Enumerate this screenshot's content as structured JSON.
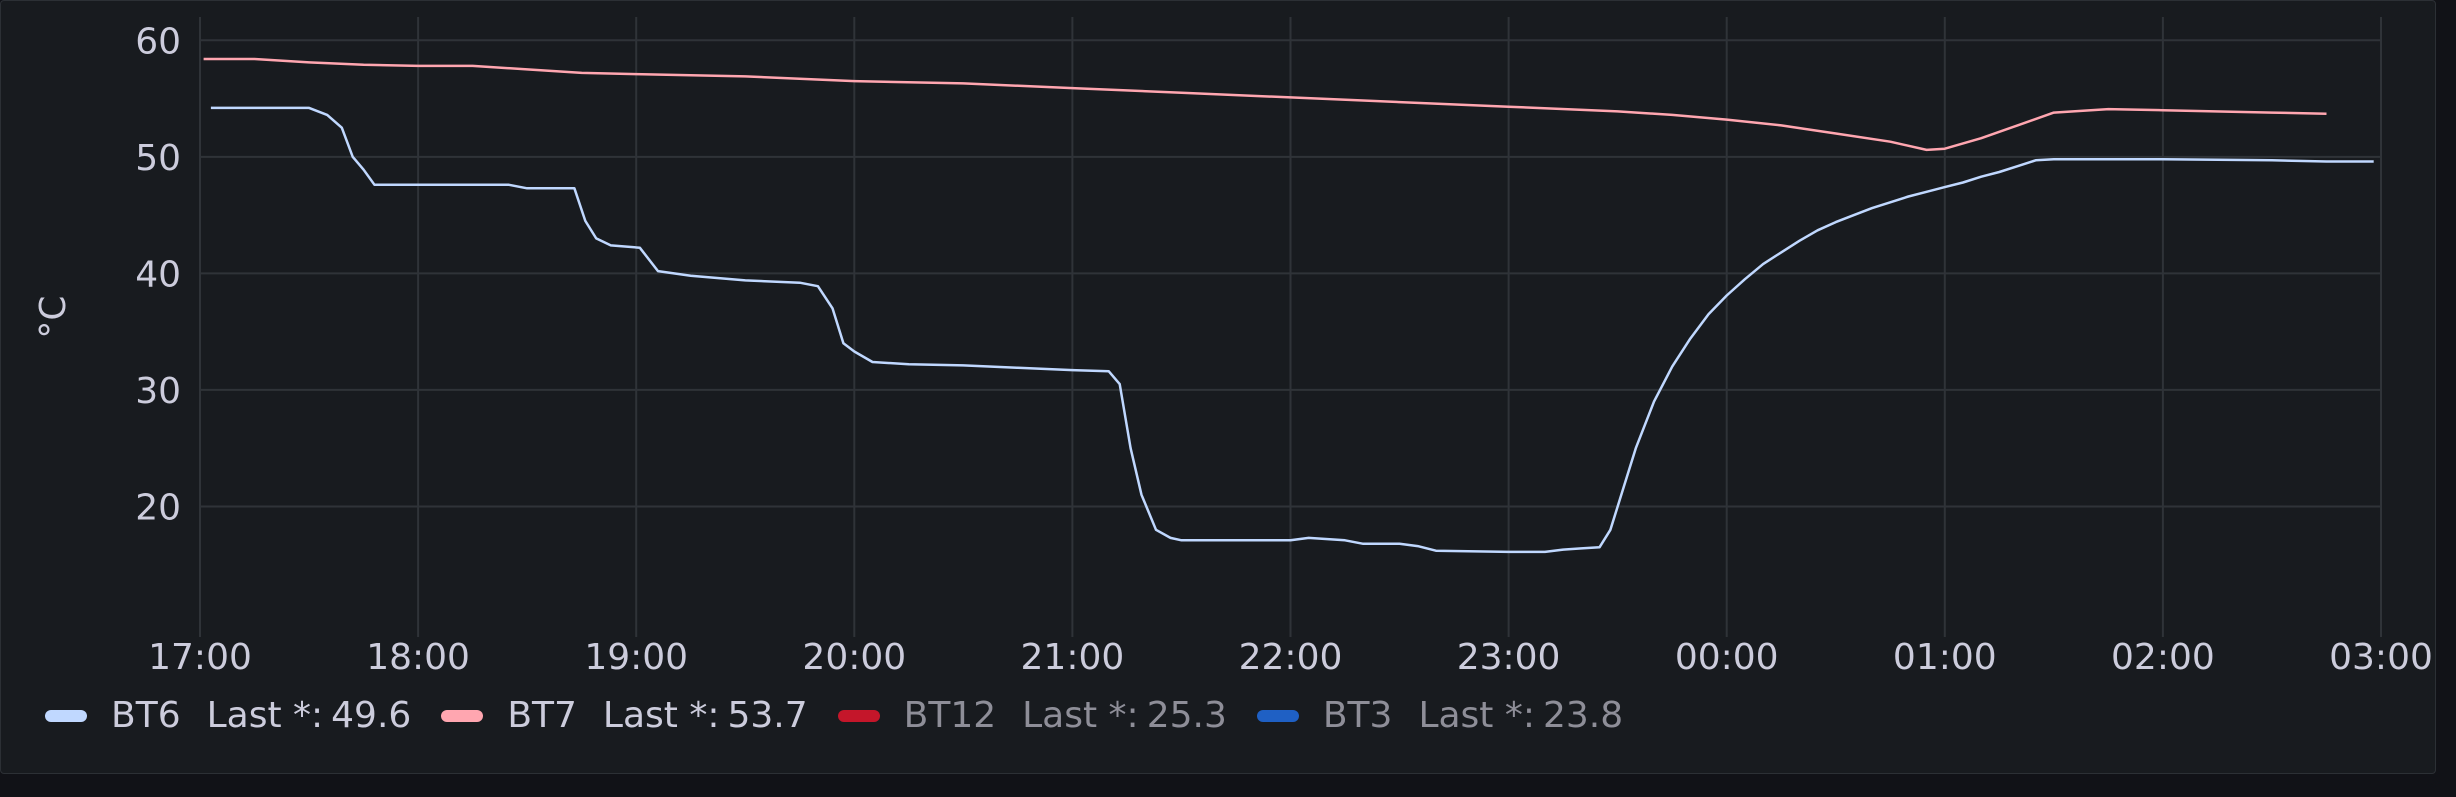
{
  "chart_data": {
    "type": "line",
    "ylabel": "°C",
    "ylim": [
      10,
      62
    ],
    "yticks": [
      20,
      30,
      40,
      50,
      60
    ],
    "xlim_hours": [
      17,
      27
    ],
    "xticks": [
      "17:00",
      "18:00",
      "19:00",
      "20:00",
      "21:00",
      "22:00",
      "23:00",
      "00:00",
      "01:00",
      "02:00",
      "03:00"
    ],
    "grid": true,
    "legend_position": "bottom-left",
    "series": [
      {
        "name": "BT6",
        "color": "#c0d8ff",
        "hidden": false,
        "stat_label": "Last *:",
        "last": "49.6",
        "points": [
          [
            "17:03",
            54.2
          ],
          [
            "17:30",
            54.2
          ],
          [
            "17:35",
            53.6
          ],
          [
            "17:39",
            52.5
          ],
          [
            "17:42",
            50.0
          ],
          [
            "17:45",
            48.9
          ],
          [
            "17:48",
            47.6
          ],
          [
            "18:00",
            47.6
          ],
          [
            "18:25",
            47.6
          ],
          [
            "18:30",
            47.3
          ],
          [
            "18:43",
            47.3
          ],
          [
            "18:46",
            44.5
          ],
          [
            "18:49",
            43.0
          ],
          [
            "18:53",
            42.4
          ],
          [
            "19:01",
            42.2
          ],
          [
            "19:06",
            40.2
          ],
          [
            "19:15",
            39.8
          ],
          [
            "19:30",
            39.4
          ],
          [
            "19:45",
            39.2
          ],
          [
            "19:50",
            38.9
          ],
          [
            "19:54",
            37.0
          ],
          [
            "19:57",
            34.0
          ],
          [
            "20:00",
            33.3
          ],
          [
            "20:05",
            32.4
          ],
          [
            "20:15",
            32.2
          ],
          [
            "20:30",
            32.1
          ],
          [
            "20:45",
            31.9
          ],
          [
            "21:00",
            31.7
          ],
          [
            "21:10",
            31.6
          ],
          [
            "21:13",
            30.5
          ],
          [
            "21:16",
            25.0
          ],
          [
            "21:19",
            21.0
          ],
          [
            "21:23",
            18.0
          ],
          [
            "21:27",
            17.3
          ],
          [
            "21:30",
            17.1
          ],
          [
            "22:00",
            17.1
          ],
          [
            "22:05",
            17.3
          ],
          [
            "22:15",
            17.1
          ],
          [
            "22:20",
            16.8
          ],
          [
            "22:30",
            16.8
          ],
          [
            "22:35",
            16.6
          ],
          [
            "22:40",
            16.2
          ],
          [
            "23:00",
            16.1
          ],
          [
            "23:10",
            16.1
          ],
          [
            "23:15",
            16.3
          ],
          [
            "23:20",
            16.4
          ],
          [
            "23:25",
            16.5
          ],
          [
            "23:28",
            18.0
          ],
          [
            "23:31",
            21.0
          ],
          [
            "23:35",
            25.0
          ],
          [
            "23:40",
            29.0
          ],
          [
            "23:45",
            32.0
          ],
          [
            "23:50",
            34.4
          ],
          [
            "23:55",
            36.5
          ],
          [
            "24:00",
            38.1
          ],
          [
            "24:05",
            39.5
          ],
          [
            "24:10",
            40.8
          ],
          [
            "24:15",
            41.8
          ],
          [
            "24:20",
            42.8
          ],
          [
            "24:25",
            43.7
          ],
          [
            "24:30",
            44.4
          ],
          [
            "24:35",
            45.0
          ],
          [
            "24:40",
            45.6
          ],
          [
            "24:45",
            46.1
          ],
          [
            "24:50",
            46.6
          ],
          [
            "24:55",
            47.0
          ],
          [
            "25:00",
            47.4
          ],
          [
            "25:05",
            47.8
          ],
          [
            "25:10",
            48.3
          ],
          [
            "25:15",
            48.7
          ],
          [
            "25:20",
            49.2
          ],
          [
            "25:25",
            49.7
          ],
          [
            "25:30",
            49.8
          ],
          [
            "26:00",
            49.8
          ],
          [
            "26:30",
            49.7
          ],
          [
            "26:45",
            49.6
          ],
          [
            "26:58",
            49.6
          ]
        ]
      },
      {
        "name": "BT7",
        "color": "#ffa6b0",
        "hidden": false,
        "stat_label": "Last *:",
        "last": "53.7",
        "points": [
          [
            "17:01",
            58.4
          ],
          [
            "17:15",
            58.4
          ],
          [
            "17:30",
            58.1
          ],
          [
            "17:45",
            57.9
          ],
          [
            "18:00",
            57.8
          ],
          [
            "18:15",
            57.8
          ],
          [
            "18:30",
            57.5
          ],
          [
            "18:45",
            57.2
          ],
          [
            "19:00",
            57.1
          ],
          [
            "19:30",
            56.9
          ],
          [
            "20:00",
            56.5
          ],
          [
            "20:30",
            56.3
          ],
          [
            "21:00",
            55.9
          ],
          [
            "21:30",
            55.5
          ],
          [
            "22:00",
            55.1
          ],
          [
            "22:30",
            54.7
          ],
          [
            "23:00",
            54.3
          ],
          [
            "23:30",
            53.9
          ],
          [
            "23:45",
            53.6
          ],
          [
            "24:00",
            53.2
          ],
          [
            "24:15",
            52.7
          ],
          [
            "24:30",
            52.0
          ],
          [
            "24:45",
            51.3
          ],
          [
            "24:55",
            50.6
          ],
          [
            "25:00",
            50.7
          ],
          [
            "25:10",
            51.6
          ],
          [
            "25:20",
            52.7
          ],
          [
            "25:30",
            53.8
          ],
          [
            "25:45",
            54.1
          ],
          [
            "26:00",
            54.0
          ],
          [
            "26:30",
            53.8
          ],
          [
            "26:45",
            53.7
          ]
        ]
      },
      {
        "name": "BT12",
        "color": "#c4162a",
        "hidden": true,
        "stat_label": "Last *:",
        "last": "25.3",
        "points": []
      },
      {
        "name": "BT3",
        "color": "#1f60c4",
        "hidden": true,
        "stat_label": "Last *:",
        "last": "23.8",
        "points": []
      }
    ]
  }
}
